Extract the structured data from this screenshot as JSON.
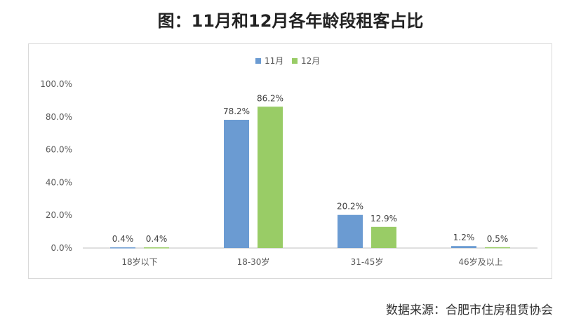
{
  "title": "图：11月和12月各年龄段租客占比",
  "source": "数据来源：合肥市住房租赁协会",
  "chart_data": {
    "type": "bar",
    "title": "",
    "categories": [
      "18岁以下",
      "18-30岁",
      "31-45岁",
      "46岁及以上"
    ],
    "series": [
      {
        "name": "11月",
        "values": [
          0.4,
          78.2,
          20.2,
          1.2
        ],
        "labels": [
          "0.4%",
          "78.2%",
          "20.2%",
          "1.2%"
        ],
        "color": "#6b9bd2"
      },
      {
        "name": "12月",
        "values": [
          0.4,
          86.2,
          12.9,
          0.5
        ],
        "labels": [
          "0.4%",
          "86.2%",
          "12.9%",
          "0.5%"
        ],
        "color": "#99cc66"
      }
    ],
    "ylim": [
      0,
      100
    ],
    "yticks": [
      "0.0%",
      "20.0%",
      "40.0%",
      "60.0%",
      "80.0%",
      "100.0%"
    ],
    "ytick_values": [
      0,
      20,
      40,
      60,
      80,
      100
    ],
    "grid": false,
    "legend_position": "top-center"
  }
}
